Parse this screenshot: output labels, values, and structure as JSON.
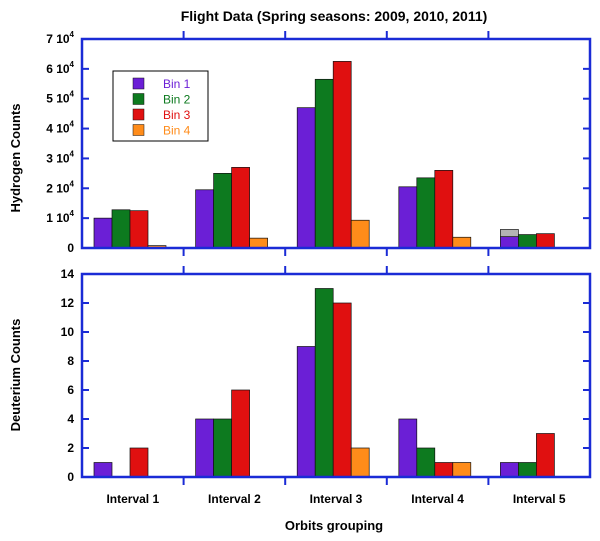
{
  "figure": {
    "title": "Flight Data (Spring seasons: 2009, 2010, 2011)",
    "xlabel": "Orbits grouping"
  },
  "colors": {
    "bin1": "#6b1fd6",
    "bin2": "#0d7a1f",
    "bin3": "#e01010",
    "bin4": "#ff8c1a",
    "axis": "#1a2bd6",
    "gray": "#b4b4b4"
  },
  "chart_data": [
    {
      "type": "bar",
      "ylabel": "Hydrogen Counts",
      "ylim": [
        0,
        70000
      ],
      "yticks": [
        0,
        10000,
        20000,
        30000,
        40000,
        50000,
        60000,
        70000
      ],
      "ytick_labels": [
        "0",
        "1 10",
        "2 10",
        "3 10",
        "4 10",
        "5 10",
        "6 10",
        "7 10"
      ],
      "ytick_exps": [
        "",
        "4",
        "4",
        "4",
        "4",
        "4",
        "4",
        "4"
      ],
      "categories": [
        "Interval 1",
        "Interval 2",
        "Interval 3",
        "Interval 4",
        "Interval 5"
      ],
      "legend_position": "top-left",
      "series": [
        {
          "name": "Bin 1",
          "color_key": "bin1",
          "values": [
            10000,
            19500,
            47000,
            20500,
            3800
          ]
        },
        {
          "name": "Bin 2",
          "color_key": "bin2",
          "values": [
            12800,
            25000,
            56500,
            23500,
            4500
          ]
        },
        {
          "name": "Bin 3",
          "color_key": "bin3",
          "values": [
            12500,
            27000,
            62500,
            26000,
            4800
          ]
        },
        {
          "name": "Bin 4",
          "color_key": "bin4",
          "values": [
            800,
            3300,
            9300,
            3600,
            200
          ]
        }
      ],
      "extra_gray_bin1": [
        0,
        0,
        0,
        0,
        6200
      ]
    },
    {
      "type": "bar",
      "ylabel": "Deuterium Counts",
      "ylim": [
        0,
        14
      ],
      "yticks": [
        0,
        2,
        4,
        6,
        8,
        10,
        12,
        14
      ],
      "ytick_labels": [
        "0",
        "2",
        "4",
        "6",
        "8",
        "10",
        "12",
        "14"
      ],
      "categories": [
        "Interval 1",
        "Interval 2",
        "Interval 3",
        "Interval 4",
        "Interval 5"
      ],
      "series": [
        {
          "name": "Bin 1",
          "color_key": "bin1",
          "values": [
            1,
            4,
            9,
            4,
            1
          ]
        },
        {
          "name": "Bin 2",
          "color_key": "bin2",
          "values": [
            0,
            4,
            13,
            2,
            1
          ]
        },
        {
          "name": "Bin 3",
          "color_key": "bin3",
          "values": [
            2,
            6,
            12,
            1,
            3
          ]
        },
        {
          "name": "Bin 4",
          "color_key": "bin4",
          "values": [
            0,
            0,
            2,
            1,
            0
          ]
        }
      ]
    }
  ]
}
